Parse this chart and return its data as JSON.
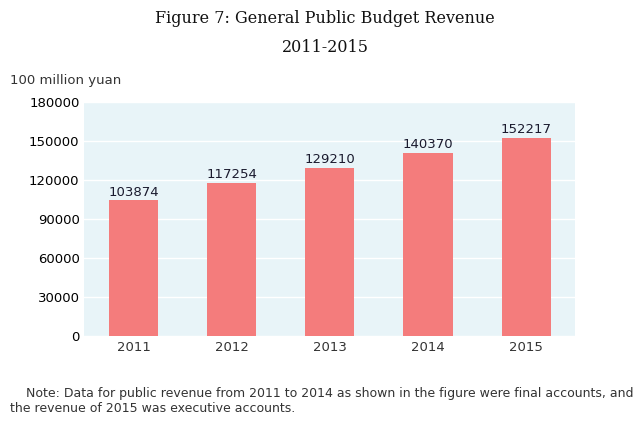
{
  "title_line1": "Figure 7: General Public Budget Revenue",
  "title_line2": "2011-2015",
  "unit_label": "100 million yuan",
  "categories": [
    "2011",
    "2012",
    "2013",
    "2014",
    "2015"
  ],
  "values": [
    103874,
    117254,
    129210,
    140370,
    152217
  ],
  "bar_color": "#F47C7C",
  "background_color": "#FFFFFF",
  "plot_bg_color": "#E8F4F8",
  "ylim": [
    0,
    180000
  ],
  "yticks": [
    0,
    30000,
    60000,
    90000,
    120000,
    150000,
    180000
  ],
  "title_fontsize": 11.5,
  "label_fontsize": 9.5,
  "tick_fontsize": 9.5,
  "unit_fontsize": 9.5,
  "note_text": "    Note: Data for public revenue from 2011 to 2014 as shown in the figure were final accounts, and\nthe revenue of 2015 was executive accounts.",
  "note_fontsize": 9.0
}
